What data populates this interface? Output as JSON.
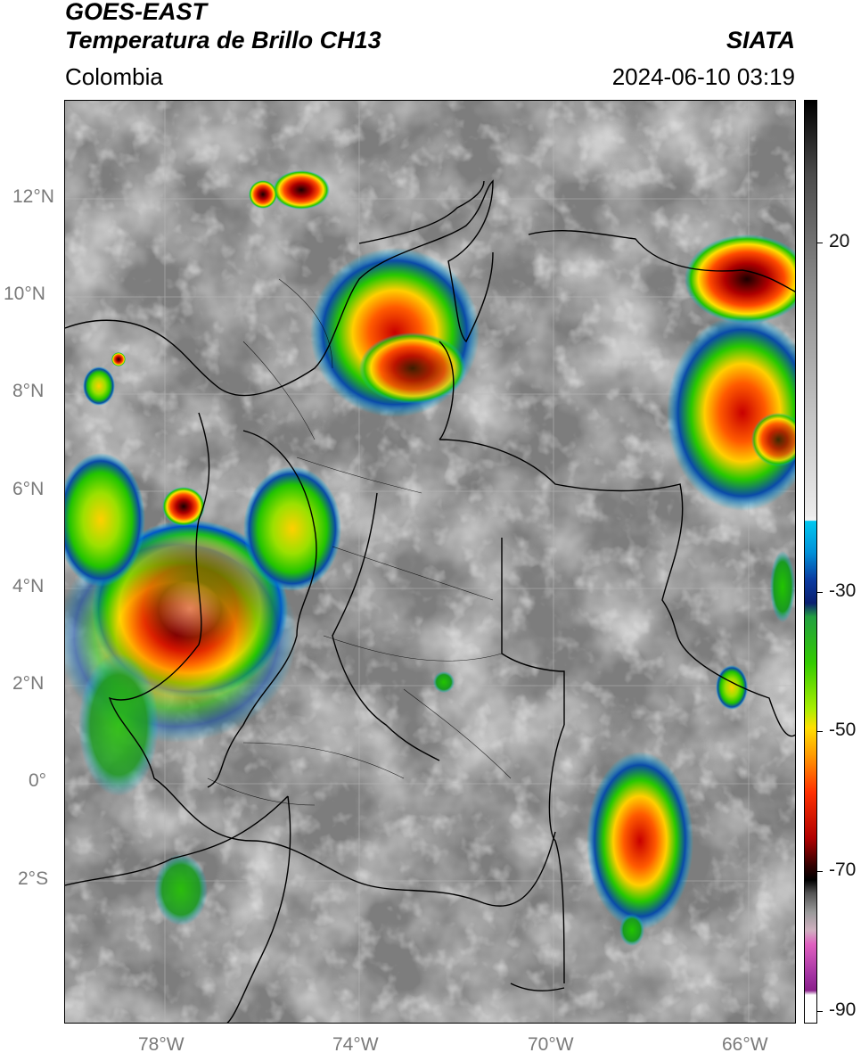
{
  "header": {
    "title_line1": "GOES-EAST",
    "title_line2": "Temperatura de Brillo CH13",
    "source": "SIATA",
    "region": "Colombia",
    "datetime": "2024-06-10 03:19"
  },
  "map": {
    "lat_labels": [
      "12°N",
      "10°N",
      "8°N",
      "6°N",
      "4°N",
      "2°N",
      "0°",
      "2°S"
    ],
    "lon_labels": [
      "78°W",
      "74°W",
      "70°W",
      "66°W"
    ]
  },
  "colorbar": {
    "labels": [
      "20",
      "-30",
      "-50",
      "-70",
      "-90"
    ],
    "unit_values": [
      20,
      -30,
      -50,
      -70,
      -90
    ]
  },
  "colors": {
    "cold_top": "#1a1a1a",
    "red": "#d40000",
    "yellow": "#ffe000",
    "green": "#22c400",
    "cyan": "#00b8e6",
    "magenta": "#c030c0"
  }
}
